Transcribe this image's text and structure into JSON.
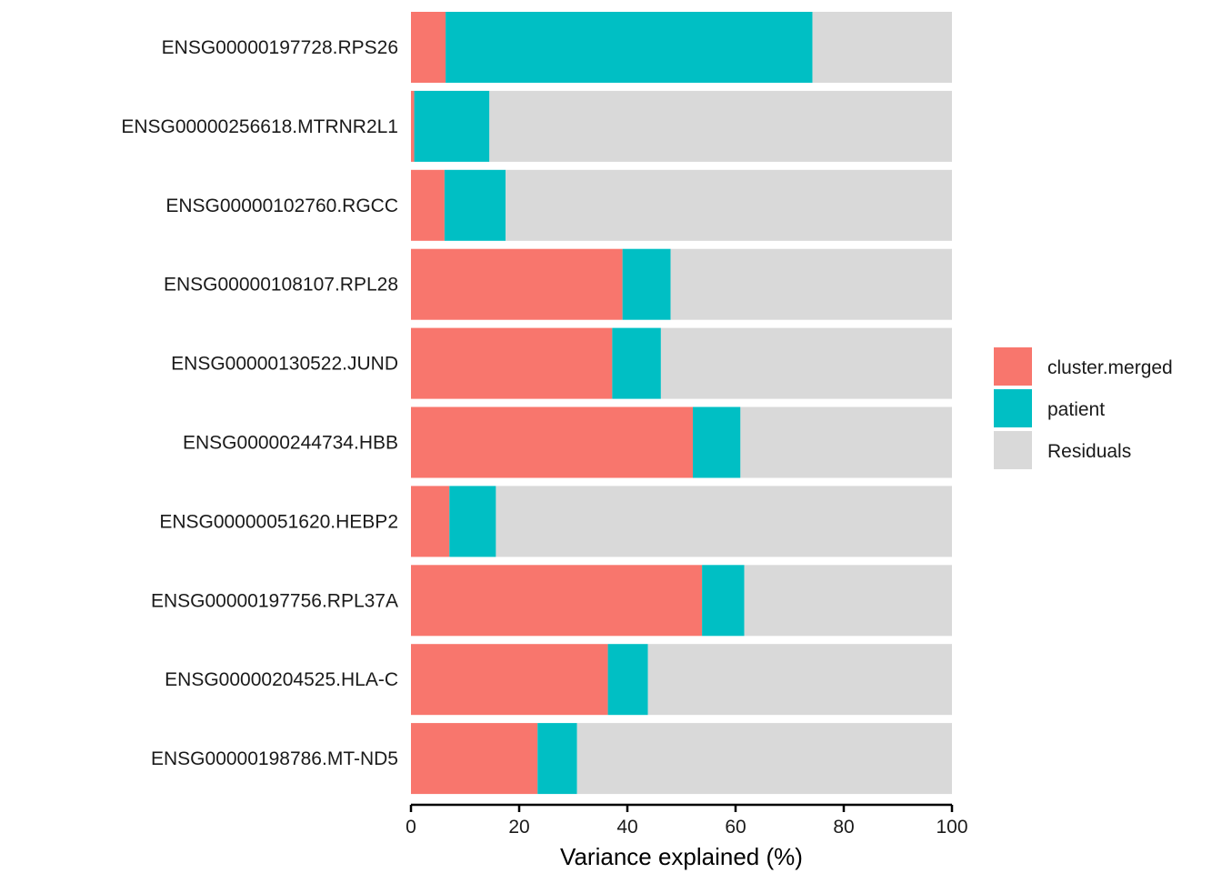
{
  "chart_data": {
    "type": "bar",
    "orientation": "horizontal",
    "stacked": true,
    "categories": [
      "ENSG00000197728.RPS26",
      "ENSG00000256618.MTRNR2L1",
      "ENSG00000102760.RGCC",
      "ENSG00000108107.RPL28",
      "ENSG00000130522.JUND",
      "ENSG00000244734.HBB",
      "ENSG00000051620.HEBP2",
      "ENSG00000197756.RPL37A",
      "ENSG00000204525.HLA-C",
      "ENSG00000198786.MT-ND5"
    ],
    "series": [
      {
        "name": "cluster.merged",
        "color": "#F8766D",
        "values": [
          6.4,
          0.6,
          6.2,
          39.1,
          37.2,
          52.1,
          7.1,
          53.8,
          36.4,
          23.4
        ]
      },
      {
        "name": "patient",
        "color": "#00BFC4",
        "values": [
          67.8,
          13.9,
          11.3,
          8.9,
          9.0,
          8.8,
          8.6,
          7.8,
          7.4,
          7.3
        ]
      },
      {
        "name": "Residuals",
        "color": "#D9D9D9",
        "values": [
          25.8,
          85.5,
          82.5,
          52.0,
          53.8,
          39.1,
          84.3,
          38.4,
          56.2,
          69.3
        ]
      }
    ],
    "xlabel": "Variance explained (%)",
    "ylabel": "",
    "xlim": [
      0,
      100
    ],
    "xticks": [
      0,
      20,
      40,
      60,
      80,
      100
    ],
    "xtick_labels": [
      "0",
      "20",
      "40",
      "60",
      "80",
      "100"
    ],
    "grid": false,
    "legend_position": "right"
  }
}
